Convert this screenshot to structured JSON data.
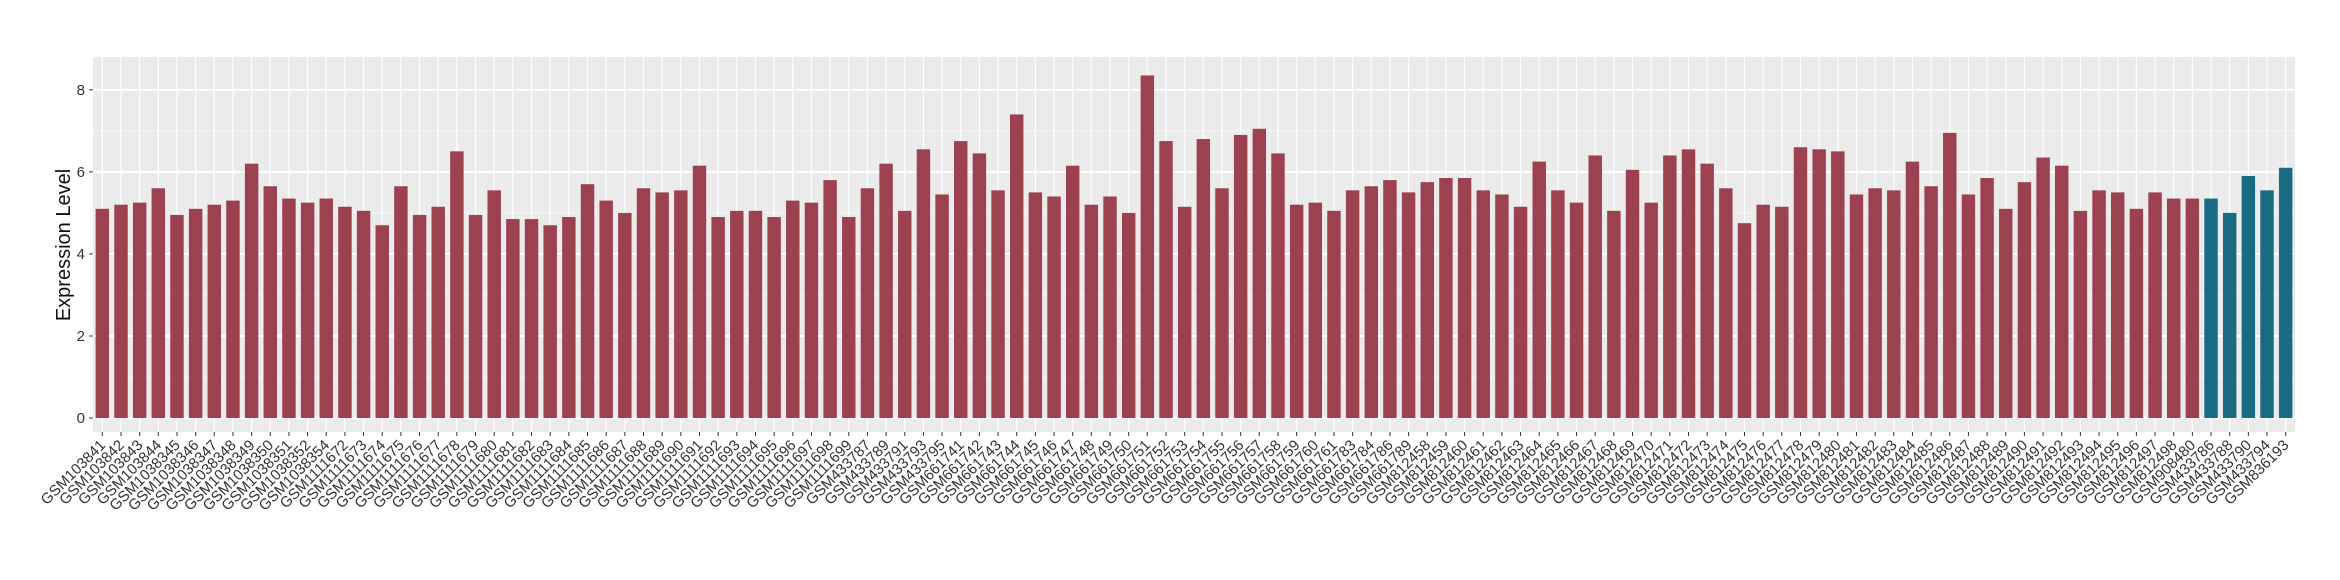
{
  "chart_data": {
    "type": "bar",
    "y_label": "Expression Level",
    "categories": [
      "GSM103841",
      "GSM103842",
      "GSM103843",
      "GSM103844",
      "GSM1038345",
      "GSM1038346",
      "GSM1038347",
      "GSM1038348",
      "GSM1038349",
      "GSM1038350",
      "GSM1038351",
      "GSM1038352",
      "GSM1038354",
      "GSM1111672",
      "GSM1111673",
      "GSM1111674",
      "GSM1111675",
      "GSM1111676",
      "GSM1111677",
      "GSM1111678",
      "GSM1111679",
      "GSM1111680",
      "GSM1111681",
      "GSM1111682",
      "GSM1111683",
      "GSM1111684",
      "GSM1111685",
      "GSM1111686",
      "GSM1111687",
      "GSM1111688",
      "GSM1111689",
      "GSM1111690",
      "GSM1111691",
      "GSM1111692",
      "GSM1111693",
      "GSM1111694",
      "GSM1111695",
      "GSM1111696",
      "GSM1111697",
      "GSM1111698",
      "GSM1111699",
      "GSM433787",
      "GSM433789",
      "GSM433791",
      "GSM433793",
      "GSM433795",
      "GSM661741",
      "GSM661742",
      "GSM661743",
      "GSM661744",
      "GSM661745",
      "GSM661746",
      "GSM661747",
      "GSM661748",
      "GSM661749",
      "GSM661750",
      "GSM661751",
      "GSM661752",
      "GSM661753",
      "GSM661754",
      "GSM661755",
      "GSM661756",
      "GSM661757",
      "GSM661758",
      "GSM661759",
      "GSM661760",
      "GSM661761",
      "GSM661783",
      "GSM661784",
      "GSM661786",
      "GSM661789",
      "GSM812458",
      "GSM812459",
      "GSM812460",
      "GSM812461",
      "GSM812462",
      "GSM812463",
      "GSM812464",
      "GSM812465",
      "GSM812466",
      "GSM812467",
      "GSM812468",
      "GSM812469",
      "GSM812470",
      "GSM812471",
      "GSM812472",
      "GSM812473",
      "GSM812474",
      "GSM812475",
      "GSM812476",
      "GSM812477",
      "GSM812478",
      "GSM812479",
      "GSM812480",
      "GSM812481",
      "GSM812482",
      "GSM812483",
      "GSM812484",
      "GSM812485",
      "GSM812486",
      "GSM812487",
      "GSM812488",
      "GSM812489",
      "GSM812490",
      "GSM812491",
      "GSM812492",
      "GSM812493",
      "GSM812494",
      "GSM812495",
      "GSM812496",
      "GSM812497",
      "GSM812498",
      "GSM908480",
      "GSM433786",
      "GSM433788",
      "GSM433790",
      "GSM433794",
      "GSM836193"
    ],
    "values": [
      5.1,
      5.2,
      5.25,
      5.6,
      4.95,
      5.1,
      5.2,
      5.3,
      6.2,
      5.65,
      5.35,
      5.25,
      5.35,
      5.15,
      5.05,
      4.7,
      5.65,
      4.95,
      5.15,
      6.5,
      4.95,
      5.55,
      4.85,
      4.85,
      4.7,
      4.9,
      5.7,
      5.3,
      5.0,
      5.6,
      5.5,
      5.55,
      6.15,
      4.9,
      5.05,
      5.05,
      4.9,
      5.3,
      5.25,
      5.8,
      4.9,
      5.6,
      6.2,
      5.05,
      6.55,
      5.45,
      6.75,
      6.45,
      5.55,
      7.4,
      5.5,
      5.4,
      6.15,
      5.2,
      5.4,
      5.0,
      8.35,
      6.75,
      5.15,
      6.8,
      5.6,
      6.9,
      7.05,
      6.45,
      5.2,
      5.25,
      5.05,
      5.55,
      5.65,
      5.8,
      5.5,
      5.75,
      5.85,
      5.85,
      5.55,
      5.45,
      5.15,
      6.25,
      5.55,
      5.25,
      6.4,
      5.05,
      6.05,
      5.25,
      6.4,
      6.55,
      6.2,
      5.6,
      4.75,
      5.2,
      5.15,
      6.6,
      6.55,
      6.5,
      5.45,
      5.6,
      5.55,
      6.25,
      5.65,
      6.95,
      5.45,
      5.85,
      5.1,
      5.75,
      6.35,
      6.15,
      5.05,
      5.55,
      5.5,
      5.1,
      5.5,
      5.35,
      5.35,
      5.35,
      5.0,
      5.9,
      5.55,
      6.1
    ],
    "colors": [
      "#9b4150",
      "#9b4150",
      "#9b4150",
      "#9b4150",
      "#9b4150",
      "#9b4150",
      "#9b4150",
      "#9b4150",
      "#9b4150",
      "#9b4150",
      "#9b4150",
      "#9b4150",
      "#9b4150",
      "#9b4150",
      "#9b4150",
      "#9b4150",
      "#9b4150",
      "#9b4150",
      "#9b4150",
      "#9b4150",
      "#9b4150",
      "#9b4150",
      "#9b4150",
      "#9b4150",
      "#9b4150",
      "#9b4150",
      "#9b4150",
      "#9b4150",
      "#9b4150",
      "#9b4150",
      "#9b4150",
      "#9b4150",
      "#9b4150",
      "#9b4150",
      "#9b4150",
      "#9b4150",
      "#9b4150",
      "#9b4150",
      "#9b4150",
      "#9b4150",
      "#9b4150",
      "#9b4150",
      "#9b4150",
      "#9b4150",
      "#9b4150",
      "#9b4150",
      "#9b4150",
      "#9b4150",
      "#9b4150",
      "#9b4150",
      "#9b4150",
      "#9b4150",
      "#9b4150",
      "#9b4150",
      "#9b4150",
      "#9b4150",
      "#9b4150",
      "#9b4150",
      "#9b4150",
      "#9b4150",
      "#9b4150",
      "#9b4150",
      "#9b4150",
      "#9b4150",
      "#9b4150",
      "#9b4150",
      "#9b4150",
      "#9b4150",
      "#9b4150",
      "#9b4150",
      "#9b4150",
      "#9b4150",
      "#9b4150",
      "#9b4150",
      "#9b4150",
      "#9b4150",
      "#9b4150",
      "#9b4150",
      "#9b4150",
      "#9b4150",
      "#9b4150",
      "#9b4150",
      "#9b4150",
      "#9b4150",
      "#9b4150",
      "#9b4150",
      "#9b4150",
      "#9b4150",
      "#9b4150",
      "#9b4150",
      "#9b4150",
      "#9b4150",
      "#9b4150",
      "#9b4150",
      "#9b4150",
      "#9b4150",
      "#9b4150",
      "#9b4150",
      "#9b4150",
      "#9b4150",
      "#9b4150",
      "#9b4150",
      "#9b4150",
      "#9b4150",
      "#9b4150",
      "#9b4150",
      "#9b4150",
      "#9b4150",
      "#9b4150",
      "#9b4150",
      "#9b4150",
      "#9b4150",
      "#9b4150",
      "#1a6a84",
      "#1a6a84",
      "#1a6a84",
      "#1a6a84",
      "#1a6a84"
    ],
    "ylim": [
      -0.34,
      8.8
    ],
    "yticks": [
      0,
      2,
      4,
      6,
      8
    ],
    "grid": true
  }
}
